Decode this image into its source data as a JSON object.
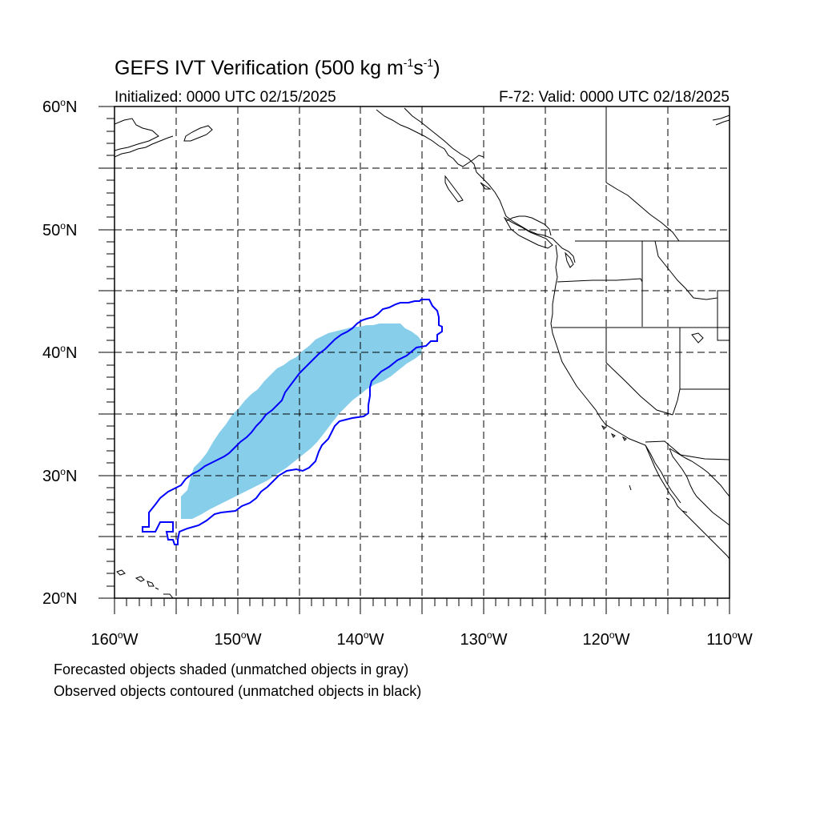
{
  "title": {
    "prefix": "GEFS IVT Verification (500 kg m",
    "exp1": "-1",
    "mid": "s",
    "exp2": "-1",
    "suffix": ")"
  },
  "initialized": "Initialized: 0000 UTC 02/15/2025",
  "valid": "F-72: Valid: 0000 UTC 02/18/2025",
  "lat_labels": [
    {
      "deg": "60",
      "hemi": "N"
    },
    {
      "deg": "50",
      "hemi": "N"
    },
    {
      "deg": "40",
      "hemi": "N"
    },
    {
      "deg": "30",
      "hemi": "N"
    },
    {
      "deg": "20",
      "hemi": "N"
    }
  ],
  "lon_labels": [
    {
      "deg": "160",
      "hemi": "W"
    },
    {
      "deg": "150",
      "hemi": "W"
    },
    {
      "deg": "140",
      "hemi": "W"
    },
    {
      "deg": "130",
      "hemi": "W"
    },
    {
      "deg": "120",
      "hemi": "W"
    },
    {
      "deg": "110",
      "hemi": "W"
    }
  ],
  "notes": {
    "forecast": "Forecasted objects shaded (unmatched objects in gray)",
    "observed": "Observed objects contoured (unmatched objects in black)"
  },
  "colors": {
    "forecast_fill": "#87ceeb",
    "observed_contour": "#0000ff",
    "coastline": "#000000",
    "grid": "#000000"
  },
  "map_extent": {
    "lon_min": -160,
    "lon_max": -110,
    "lat_min": 20,
    "lat_max": 60
  }
}
